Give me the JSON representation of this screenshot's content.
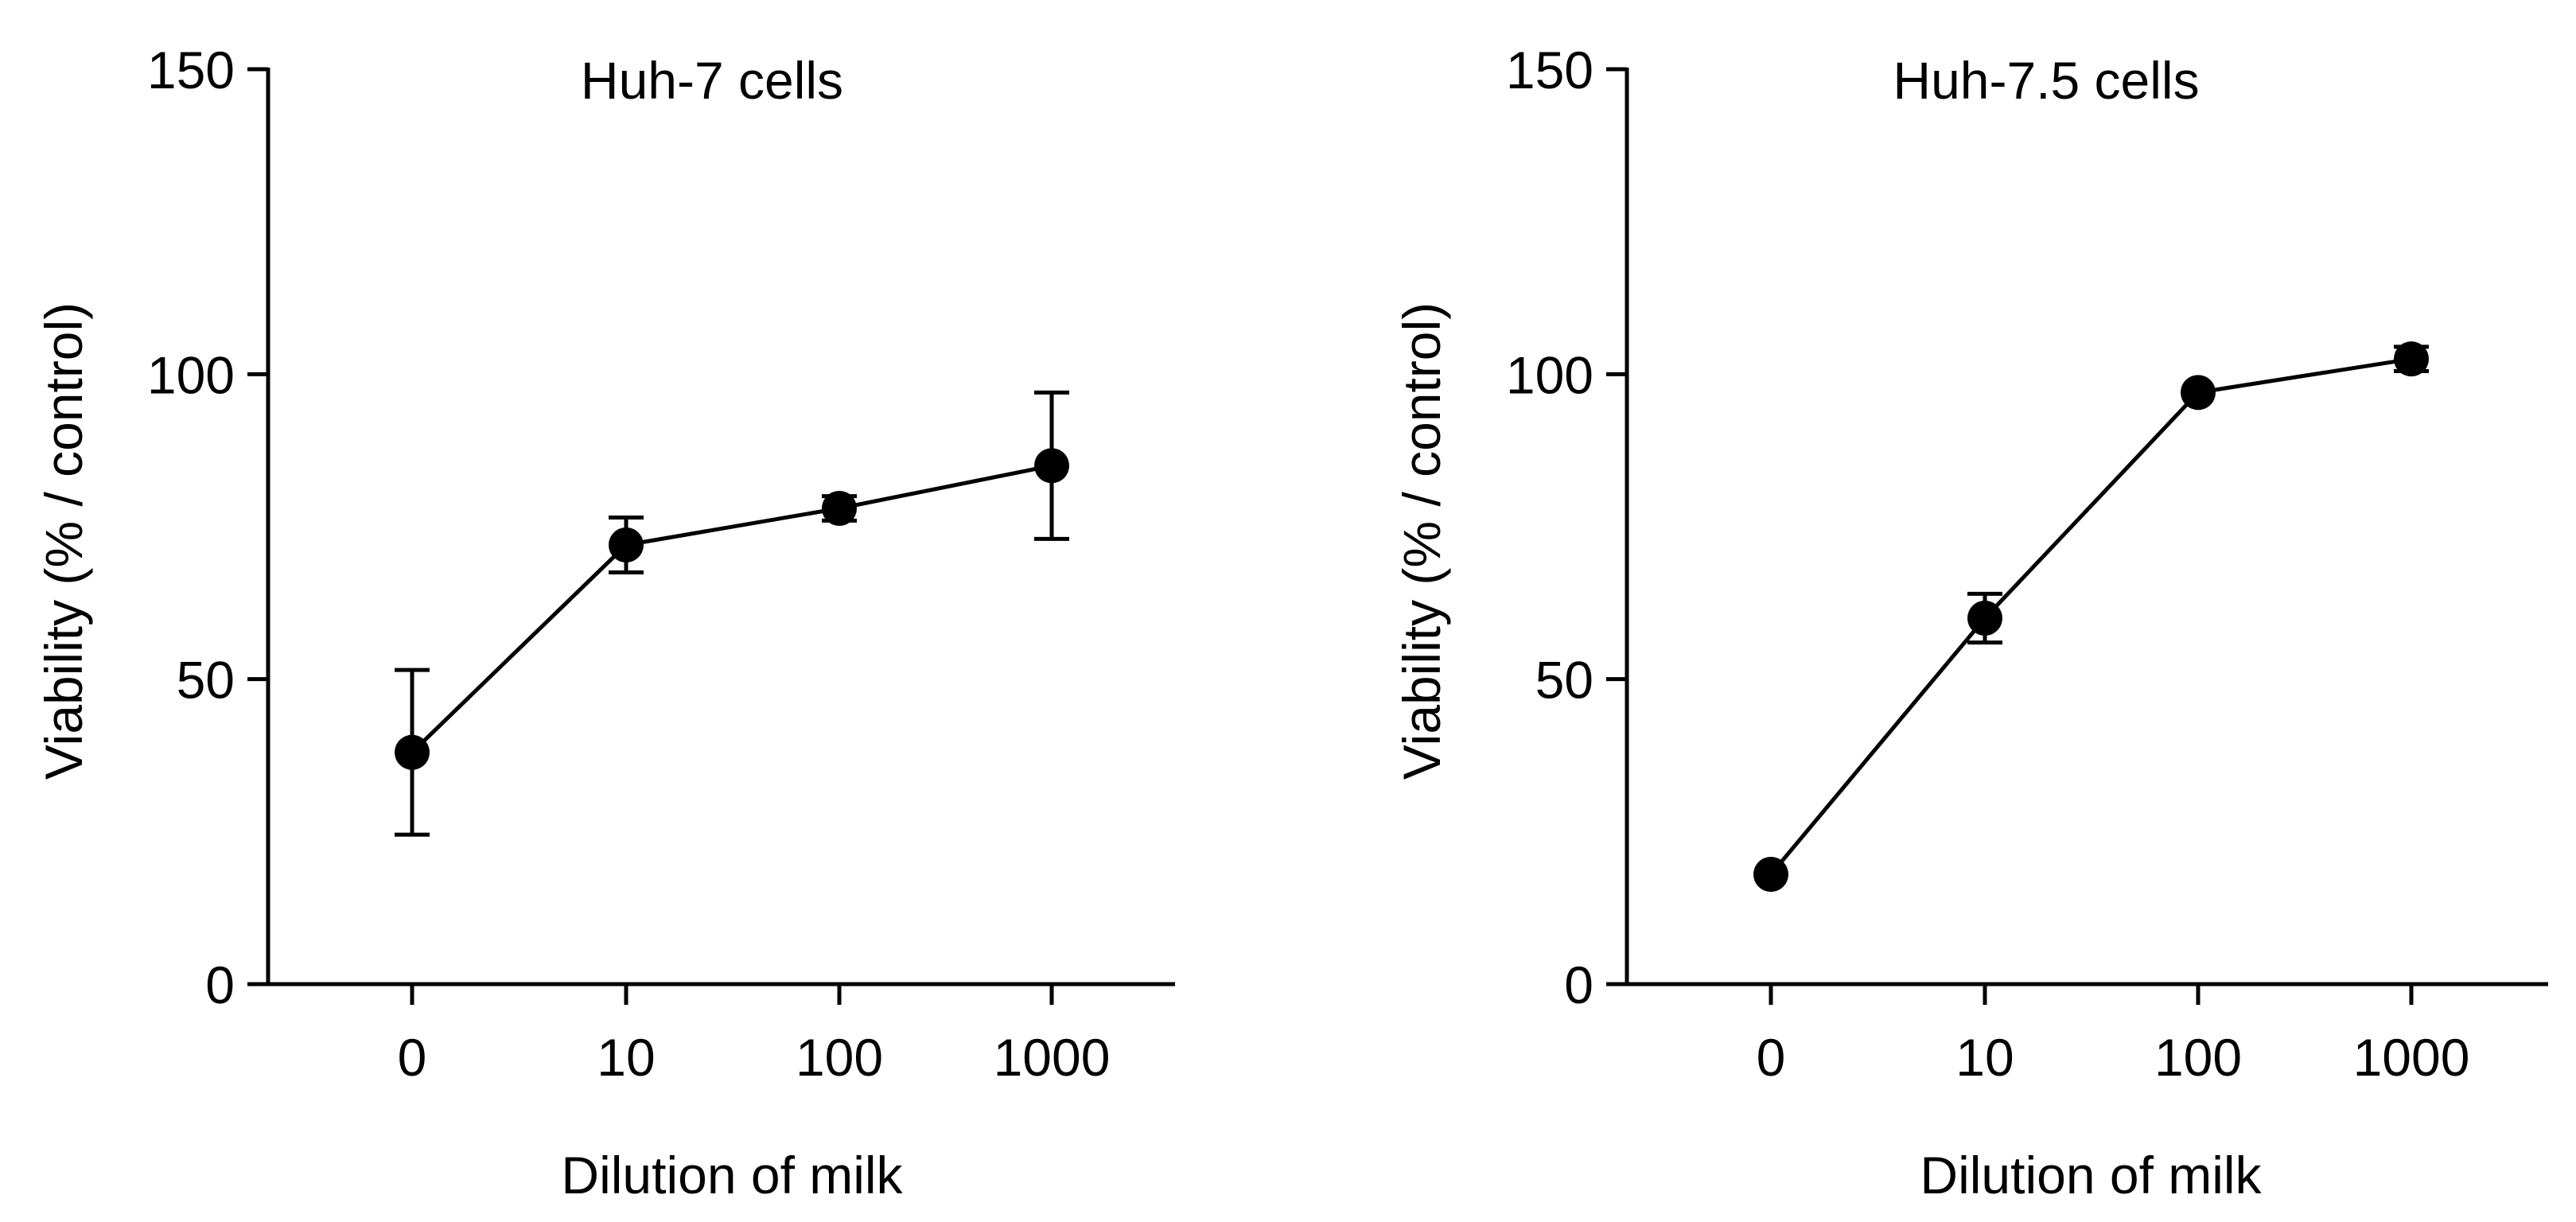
{
  "chart_data": [
    {
      "type": "line",
      "title": "Huh-7 cells",
      "xlabel": "Dilution of milk",
      "ylabel": "Viability (% / control)",
      "categories": [
        "0",
        "10",
        "100",
        "1000"
      ],
      "ylim": [
        0,
        150
      ],
      "yticks": [
        0,
        50,
        100,
        150
      ],
      "series": [
        {
          "name": "Huh-7 cells",
          "values": [
            38,
            72,
            78,
            85
          ],
          "errors": [
            13.5,
            4.5,
            2,
            12
          ]
        }
      ],
      "color": "#000000"
    },
    {
      "type": "line",
      "title": "Huh-7.5 cells",
      "xlabel": "Dilution of milk",
      "ylabel": "Viability (% / control)",
      "categories": [
        "0",
        "10",
        "100",
        "1000"
      ],
      "ylim": [
        0,
        150
      ],
      "yticks": [
        0,
        50,
        100,
        150
      ],
      "series": [
        {
          "name": "Huh-7.5 cells",
          "values": [
            18,
            60,
            97,
            102.5
          ],
          "errors": [
            0,
            4,
            0,
            2
          ]
        }
      ],
      "color": "#000000"
    }
  ]
}
